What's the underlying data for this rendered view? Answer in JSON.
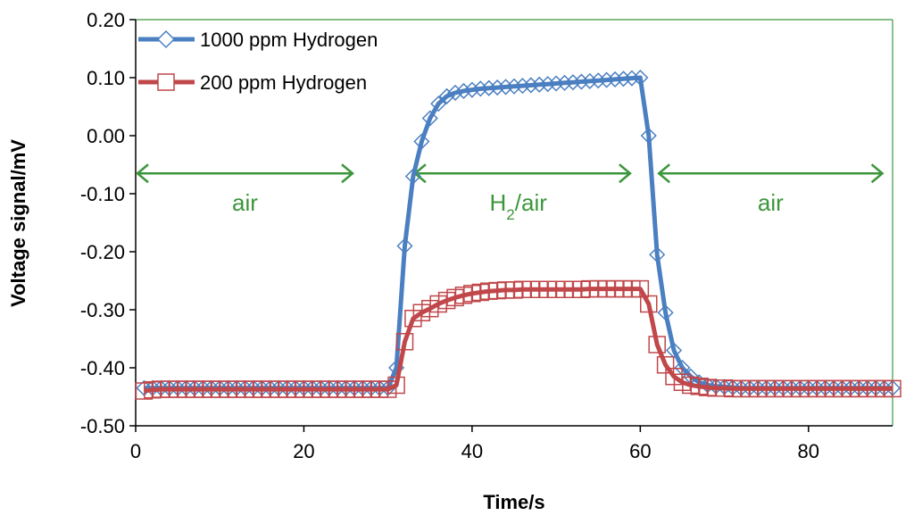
{
  "chart_data": {
    "type": "line",
    "title": "",
    "xlabel": "Time/s",
    "ylabel": "Voltage signal/mV",
    "xlim": [
      0,
      90
    ],
    "ylim": [
      -0.5,
      0.2
    ],
    "xticks": [
      "0",
      "20",
      "40",
      "60",
      "80"
    ],
    "xtick_values": [
      0,
      20,
      40,
      60,
      80
    ],
    "yticks": [
      "-0.50",
      "-0.40",
      "-0.30",
      "-0.20",
      "-0.10",
      "0.00",
      "0.10",
      "0.20"
    ],
    "ytick_values": [
      -0.5,
      -0.4,
      -0.3,
      -0.2,
      -0.1,
      0.0,
      0.1,
      0.2
    ],
    "grid": false,
    "legend_position": "top-left",
    "series": [
      {
        "name": "1000 ppm Hydrogen",
        "color": "#4a7fc1",
        "marker": "diamond",
        "x": [
          1,
          2,
          3,
          4,
          5,
          6,
          7,
          8,
          9,
          10,
          11,
          12,
          13,
          14,
          15,
          16,
          17,
          18,
          19,
          20,
          21,
          22,
          23,
          24,
          25,
          26,
          27,
          28,
          29,
          30,
          31,
          32,
          33,
          34,
          35,
          36,
          37,
          38,
          39,
          40,
          41,
          42,
          43,
          44,
          45,
          46,
          47,
          48,
          49,
          50,
          51,
          52,
          53,
          54,
          55,
          56,
          57,
          58,
          59,
          60,
          61,
          62,
          63,
          64,
          65,
          66,
          67,
          68,
          69,
          70,
          71,
          72,
          73,
          74,
          75,
          76,
          77,
          78,
          79,
          80,
          81,
          82,
          83,
          84,
          85,
          86,
          87,
          88,
          89,
          90
        ],
        "y": [
          -0.435,
          -0.435,
          -0.435,
          -0.435,
          -0.435,
          -0.435,
          -0.435,
          -0.435,
          -0.435,
          -0.435,
          -0.435,
          -0.435,
          -0.435,
          -0.435,
          -0.435,
          -0.435,
          -0.435,
          -0.435,
          -0.435,
          -0.435,
          -0.435,
          -0.435,
          -0.435,
          -0.435,
          -0.435,
          -0.435,
          -0.435,
          -0.435,
          -0.435,
          -0.435,
          -0.4,
          -0.19,
          -0.07,
          -0.01,
          0.03,
          0.055,
          0.068,
          0.074,
          0.077,
          0.079,
          0.081,
          0.082,
          0.083,
          0.084,
          0.085,
          0.086,
          0.087,
          0.088,
          0.089,
          0.09,
          0.091,
          0.092,
          0.093,
          0.094,
          0.095,
          0.096,
          0.097,
          0.098,
          0.099,
          0.1,
          0.0,
          -0.205,
          -0.305,
          -0.37,
          -0.4,
          -0.415,
          -0.425,
          -0.43,
          -0.432,
          -0.433,
          -0.434,
          -0.435,
          -0.435,
          -0.435,
          -0.435,
          -0.435,
          -0.435,
          -0.435,
          -0.435,
          -0.435,
          -0.435,
          -0.435,
          -0.435,
          -0.435,
          -0.435,
          -0.435,
          -0.435,
          -0.435,
          -0.435,
          -0.435
        ]
      },
      {
        "name": "200 ppm Hydrogen",
        "color": "#c0474a",
        "marker": "square",
        "x": [
          1,
          2,
          3,
          4,
          5,
          6,
          7,
          8,
          9,
          10,
          11,
          12,
          13,
          14,
          15,
          16,
          17,
          18,
          19,
          20,
          21,
          22,
          23,
          24,
          25,
          26,
          27,
          28,
          29,
          30,
          31,
          32,
          33,
          34,
          35,
          36,
          37,
          38,
          39,
          40,
          41,
          42,
          43,
          44,
          45,
          46,
          47,
          48,
          49,
          50,
          51,
          52,
          53,
          54,
          55,
          56,
          57,
          58,
          59,
          60,
          61,
          62,
          63,
          64,
          65,
          66,
          67,
          68,
          69,
          70,
          71,
          72,
          73,
          74,
          75,
          76,
          77,
          78,
          79,
          80,
          81,
          82,
          83,
          84,
          85,
          86,
          87,
          88,
          89,
          90
        ],
        "y": [
          -0.44,
          -0.438,
          -0.437,
          -0.437,
          -0.437,
          -0.437,
          -0.437,
          -0.437,
          -0.437,
          -0.437,
          -0.437,
          -0.437,
          -0.437,
          -0.437,
          -0.437,
          -0.437,
          -0.437,
          -0.437,
          -0.437,
          -0.437,
          -0.437,
          -0.437,
          -0.437,
          -0.437,
          -0.437,
          -0.437,
          -0.437,
          -0.437,
          -0.437,
          -0.437,
          -0.43,
          -0.355,
          -0.315,
          -0.305,
          -0.298,
          -0.29,
          -0.284,
          -0.279,
          -0.275,
          -0.272,
          -0.27,
          -0.268,
          -0.267,
          -0.266,
          -0.266,
          -0.265,
          -0.265,
          -0.265,
          -0.265,
          -0.265,
          -0.265,
          -0.265,
          -0.265,
          -0.264,
          -0.264,
          -0.264,
          -0.264,
          -0.264,
          -0.264,
          -0.264,
          -0.29,
          -0.36,
          -0.395,
          -0.415,
          -0.425,
          -0.43,
          -0.432,
          -0.434,
          -0.435,
          -0.435,
          -0.436,
          -0.436,
          -0.436,
          -0.436,
          -0.436,
          -0.436,
          -0.436,
          -0.436,
          -0.436,
          -0.436,
          -0.436,
          -0.436,
          -0.436,
          -0.436,
          -0.436,
          -0.436,
          -0.436,
          -0.436,
          -0.436,
          -0.436
        ]
      }
    ],
    "annotations": [
      {
        "text": "air",
        "x": 13,
        "y": -0.115,
        "from": 0,
        "to": 26,
        "arrow_y": -0.065
      },
      {
        "text": "H2/air",
        "x": 45.5,
        "y": -0.115,
        "from": 33,
        "to": 59,
        "arrow_y": -0.065
      },
      {
        "text": "air",
        "x": 75.5,
        "y": -0.115,
        "from": 62,
        "to": 89,
        "arrow_y": -0.065
      }
    ],
    "annotation_color": "#3c963c"
  }
}
